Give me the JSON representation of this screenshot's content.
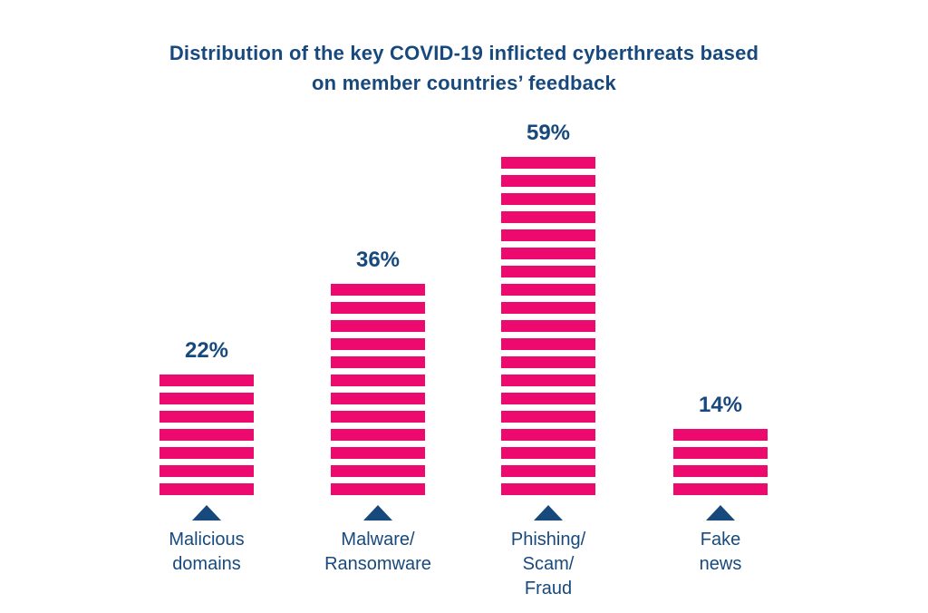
{
  "title_lines": [
    "Distribution of the key COVID-19 inflicted cyberthreats based",
    "on member countries’ feedback"
  ],
  "colors": {
    "bar_pink": "#EC0A6E",
    "navy_text": "#17497D"
  },
  "chart_data": {
    "type": "bar",
    "style": "striped-segment-bars",
    "title": "Distribution of the key COVID-19 inflicted cyberthreats based on member countries’ feedback",
    "categories": [
      "Malicious domains",
      "Malware/Ransomware",
      "Phishing/Scam/Fraud",
      "Fake news"
    ],
    "category_display": [
      "Malicious\ndomains",
      "Malware/\nRansomware",
      "Phishing/\nScam/\nFraud",
      "Fake\nnews"
    ],
    "values": [
      22,
      36,
      59,
      14
    ],
    "value_labels": [
      "22%",
      "36%",
      "59%",
      "14%"
    ],
    "stripe_counts": [
      7,
      12,
      19,
      4
    ],
    "stripe_unit_percent": 3,
    "xlabel": "",
    "ylabel": "",
    "legend": "none",
    "grid": "off",
    "orientation": "vertical",
    "value_label_position": "above-bar",
    "marker_below_bar": "up-triangle"
  }
}
